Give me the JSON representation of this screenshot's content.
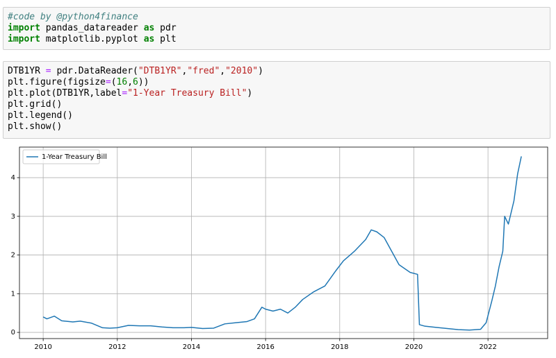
{
  "cells": [
    {
      "lines": [
        [
          {
            "text": "#code by @python4finance",
            "color": "#408080",
            "style": "italic"
          }
        ],
        [
          {
            "text": "import",
            "color": "#008000",
            "style": "bold"
          },
          {
            "text": " pandas_datareader "
          },
          {
            "text": "as",
            "color": "#008000",
            "style": "bold"
          },
          {
            "text": " pdr"
          }
        ],
        [
          {
            "text": "import",
            "color": "#008000",
            "style": "bold"
          },
          {
            "text": " matplotlib.pyplot "
          },
          {
            "text": "as",
            "color": "#008000",
            "style": "bold"
          },
          {
            "text": " plt"
          }
        ]
      ]
    },
    {
      "lines": [
        [
          {
            "text": "DTB1YR "
          },
          {
            "text": "=",
            "color": "#AA22FF"
          },
          {
            "text": " pdr.DataReader("
          },
          {
            "text": "\"DTB1YR\"",
            "color": "#BA2121"
          },
          {
            "text": ","
          },
          {
            "text": "\"fred\"",
            "color": "#BA2121"
          },
          {
            "text": ","
          },
          {
            "text": "\"2010\"",
            "color": "#BA2121"
          },
          {
            "text": ")"
          }
        ],
        [
          {
            "text": "plt.figure(figsize"
          },
          {
            "text": "=",
            "color": "#AA22FF"
          },
          {
            "text": "("
          },
          {
            "text": "16",
            "color": "#008000"
          },
          {
            "text": ","
          },
          {
            "text": "6",
            "color": "#008000"
          },
          {
            "text": "))"
          }
        ],
        [
          {
            "text": "plt.plot(DTB1YR,label"
          },
          {
            "text": "=",
            "color": "#AA22FF"
          },
          {
            "text": "\"1-Year Treasury Bill\"",
            "color": "#BA2121"
          },
          {
            "text": ")"
          }
        ],
        [
          {
            "text": "plt.grid()"
          }
        ],
        [
          {
            "text": "plt.legend()"
          }
        ],
        [
          {
            "text": "plt.show()"
          }
        ]
      ]
    }
  ],
  "chart_data": {
    "type": "line",
    "grid": true,
    "legend": "upper left",
    "xlim": [
      2009.36,
      2023.61
    ],
    "xticks": [
      2010,
      2012,
      2014,
      2016,
      2018,
      2020,
      2022
    ],
    "ylim": [
      -0.16,
      4.79
    ],
    "yticks": [
      0,
      1,
      2,
      3,
      4
    ],
    "x": [
      2010.0,
      2010.1,
      2010.3,
      2010.5,
      2010.8,
      2011.0,
      2011.3,
      2011.6,
      2011.8,
      2012.0,
      2012.3,
      2012.6,
      2012.9,
      2013.2,
      2013.5,
      2013.8,
      2014.0,
      2014.3,
      2014.6,
      2014.9,
      2015.2,
      2015.5,
      2015.7,
      2015.9,
      2016.0,
      2016.2,
      2016.4,
      2016.6,
      2016.8,
      2017.0,
      2017.3,
      2017.6,
      2017.9,
      2018.1,
      2018.4,
      2018.7,
      2018.85,
      2019.0,
      2019.2,
      2019.4,
      2019.6,
      2019.9,
      2020.1,
      2020.15,
      2020.3,
      2020.6,
      2020.9,
      2021.2,
      2021.5,
      2021.8,
      2021.95,
      2022.1,
      2022.2,
      2022.3,
      2022.4,
      2022.45,
      2022.55,
      2022.7,
      2022.8,
      2022.9
    ],
    "series": [
      {
        "name": "1-Year Treasury Bill",
        "color": "#1f77b4",
        "values": [
          0.4,
          0.35,
          0.42,
          0.3,
          0.27,
          0.29,
          0.24,
          0.12,
          0.11,
          0.12,
          0.18,
          0.17,
          0.17,
          0.14,
          0.12,
          0.12,
          0.13,
          0.1,
          0.11,
          0.22,
          0.25,
          0.28,
          0.35,
          0.65,
          0.6,
          0.55,
          0.6,
          0.5,
          0.65,
          0.85,
          1.05,
          1.2,
          1.6,
          1.85,
          2.1,
          2.4,
          2.65,
          2.6,
          2.45,
          2.1,
          1.75,
          1.55,
          1.5,
          0.2,
          0.16,
          0.13,
          0.1,
          0.07,
          0.06,
          0.08,
          0.25,
          0.8,
          1.2,
          1.7,
          2.1,
          3.0,
          2.8,
          3.4,
          4.1,
          4.55
        ]
      }
    ]
  }
}
